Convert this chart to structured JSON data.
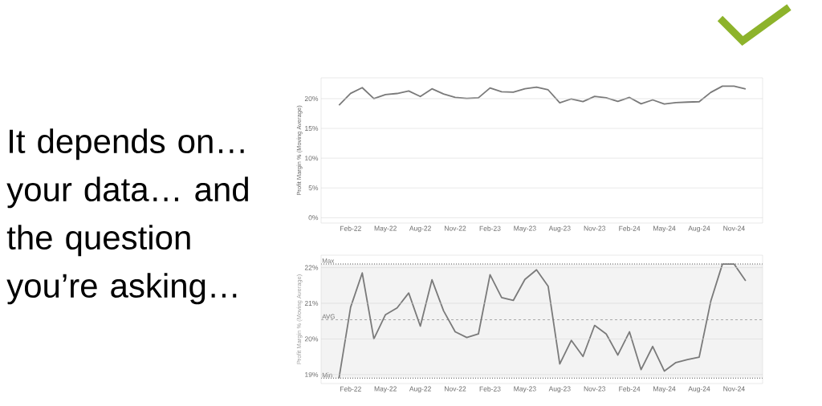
{
  "chart_data": [
    {
      "type": "other",
      "annotations": [
        "It depends on… your data… and the question you’re asking…"
      ]
    },
    {
      "type": "line",
      "ylabel": "Profit Margin % (Moving Average)",
      "x": [
        "2022-01",
        "2022-02",
        "2022-03",
        "2022-04",
        "2022-05",
        "2022-06",
        "2022-07",
        "2022-08",
        "2022-09",
        "2022-10",
        "2022-11",
        "2022-12",
        "2023-01",
        "2023-02",
        "2023-03",
        "2023-04",
        "2023-05",
        "2023-06",
        "2023-07",
        "2023-08",
        "2023-09",
        "2023-10",
        "2023-11",
        "2023-12",
        "2024-01",
        "2024-02",
        "2024-03",
        "2024-04",
        "2024-05",
        "2024-06",
        "2024-07",
        "2024-08",
        "2024-09",
        "2024-10",
        "2024-11",
        "2024-12"
      ],
      "series": [
        {
          "color": "#7a7a7a",
          "values": [
            18.9,
            20.89,
            21.85,
            20.0,
            20.68,
            20.87,
            21.29,
            20.36,
            21.66,
            20.79,
            20.2,
            20.04,
            20.14,
            21.8,
            21.16,
            21.08,
            21.67,
            21.94,
            21.48,
            19.3,
            19.96,
            19.51,
            20.38,
            20.14,
            19.55,
            20.2,
            19.14,
            19.79,
            19.1,
            19.34,
            19.42,
            19.49,
            21.06,
            22.1,
            22.1,
            21.63
          ]
        }
      ],
      "xlim": [
        "2021-11-15",
        "2025-01-15"
      ],
      "xticks": [
        {
          "value": "2022-02",
          "label": "Feb-22"
        },
        {
          "value": "2022-05",
          "label": "May-22"
        },
        {
          "value": "2022-08",
          "label": "Aug-22"
        },
        {
          "value": "2022-11",
          "label": "Nov-22"
        },
        {
          "value": "2023-02",
          "label": "Feb-23"
        },
        {
          "value": "2023-05",
          "label": "May-23"
        },
        {
          "value": "2023-08",
          "label": "Aug-23"
        },
        {
          "value": "2023-11",
          "label": "Nov-23"
        },
        {
          "value": "2024-02",
          "label": "Feb-24"
        },
        {
          "value": "2024-05",
          "label": "May-24"
        },
        {
          "value": "2024-08",
          "label": "Aug-24"
        },
        {
          "value": "2024-11",
          "label": "Nov-24"
        }
      ],
      "ylim": [
        -0.9,
        23.5
      ],
      "yticks": [
        {
          "value": 0,
          "label": "0%"
        },
        {
          "value": 5,
          "label": "5%"
        },
        {
          "value": 10,
          "label": "10%"
        },
        {
          "value": 15,
          "label": "15%"
        },
        {
          "value": 20,
          "label": "20%"
        }
      ],
      "grid": "y"
    },
    {
      "type": "line",
      "ylabel": "Profit Margin % (Moving Average)",
      "x": [
        "2022-01",
        "2022-02",
        "2022-03",
        "2022-04",
        "2022-05",
        "2022-06",
        "2022-07",
        "2022-08",
        "2022-09",
        "2022-10",
        "2022-11",
        "2022-12",
        "2023-01",
        "2023-02",
        "2023-03",
        "2023-04",
        "2023-05",
        "2023-06",
        "2023-07",
        "2023-08",
        "2023-09",
        "2023-10",
        "2023-11",
        "2023-12",
        "2024-01",
        "2024-02",
        "2024-03",
        "2024-04",
        "2024-05",
        "2024-06",
        "2024-07",
        "2024-08",
        "2024-09",
        "2024-10",
        "2024-11",
        "2024-12"
      ],
      "series": [
        {
          "color": "#7a7a7a",
          "values": [
            18.9,
            20.89,
            21.85,
            20.0,
            20.68,
            20.87,
            21.29,
            20.36,
            21.66,
            20.79,
            20.2,
            20.04,
            20.14,
            21.8,
            21.16,
            21.08,
            21.67,
            21.94,
            21.48,
            19.3,
            19.96,
            19.51,
            20.38,
            20.14,
            19.55,
            20.2,
            19.14,
            19.79,
            19.1,
            19.34,
            19.42,
            19.49,
            21.06,
            22.1,
            22.1,
            21.63
          ]
        }
      ],
      "xlim": [
        "2021-11-15",
        "2025-01-15"
      ],
      "xticks": [
        {
          "value": "2022-02",
          "label": "Feb-22"
        },
        {
          "value": "2022-05",
          "label": "May-22"
        },
        {
          "value": "2022-08",
          "label": "Aug-22"
        },
        {
          "value": "2022-11",
          "label": "Nov-22"
        },
        {
          "value": "2023-02",
          "label": "Feb-23"
        },
        {
          "value": "2023-05",
          "label": "May-23"
        },
        {
          "value": "2023-08",
          "label": "Aug-23"
        },
        {
          "value": "2023-11",
          "label": "Nov-23"
        },
        {
          "value": "2024-02",
          "label": "Feb-24"
        },
        {
          "value": "2024-05",
          "label": "May-24"
        },
        {
          "value": "2024-08",
          "label": "Aug-24"
        },
        {
          "value": "2024-11",
          "label": "Nov-24"
        }
      ],
      "ylim": [
        18.75,
        22.35
      ],
      "yticks": [
        {
          "value": 19,
          "label": "19%"
        },
        {
          "value": 20,
          "label": "20%"
        },
        {
          "value": 21,
          "label": "21%"
        },
        {
          "value": 22,
          "label": "22%"
        }
      ],
      "grid": "y",
      "bands": [
        {
          "axis": "y",
          "from": 18.9,
          "to": 22.1,
          "color": "#f3f3f3"
        }
      ],
      "ref_lines": [
        {
          "axis": "y",
          "value": 22.1,
          "label": "Max",
          "line_style": "dotted",
          "color": "#555555"
        },
        {
          "axis": "y",
          "value": 20.54,
          "label": "AVG",
          "line_style": "dashed",
          "color": "#aaaaaa"
        },
        {
          "axis": "y",
          "value": 18.9,
          "label": "Min",
          "line_style": "dotted",
          "color": "#555555"
        }
      ]
    }
  ]
}
